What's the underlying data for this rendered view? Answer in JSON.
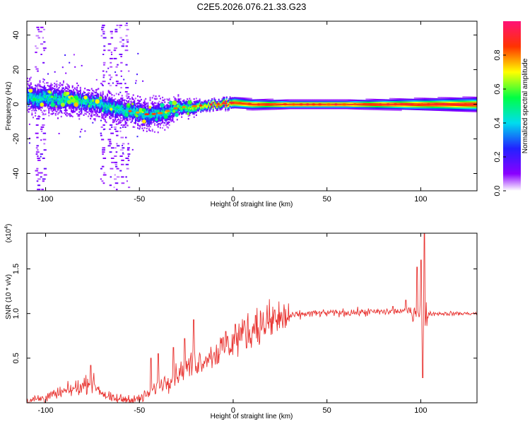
{
  "title": "C2E5.2026.076.21.33.G23",
  "chart_data": [
    {
      "type": "heatmap",
      "xlabel": "Height of straight line (km)",
      "ylabel": "Frequency (Hz)",
      "xlim": [
        -110,
        130
      ],
      "ylim": [
        -50,
        48
      ],
      "xticks": [
        -100,
        -50,
        0,
        50,
        100
      ],
      "yticks": [
        40,
        20,
        0,
        -20,
        -40
      ],
      "colorbar": {
        "label": "Normalized spectral amplitude",
        "range": [
          0.0,
          1.0
        ],
        "ticks": [
          0.0,
          0.2,
          0.4,
          0.6,
          0.8
        ]
      },
      "centerline_points": [
        [
          -108,
          4
        ],
        [
          -95,
          3
        ],
        [
          -85,
          2
        ],
        [
          -75,
          1
        ],
        [
          -65,
          -2
        ],
        [
          -55,
          -4
        ],
        [
          -45,
          -6
        ],
        [
          -38,
          -5
        ],
        [
          -30,
          -2
        ],
        [
          -20,
          -1
        ],
        [
          -10,
          0
        ],
        [
          0,
          1
        ],
        [
          10,
          0
        ],
        [
          30,
          0
        ],
        [
          60,
          0
        ],
        [
          90,
          0
        ],
        [
          100,
          0
        ],
        [
          130,
          0
        ]
      ],
      "band_halfwidth_points": [
        [
          -108,
          8
        ],
        [
          -80,
          7
        ],
        [
          -60,
          7
        ],
        [
          -40,
          8
        ],
        [
          -30,
          5
        ],
        [
          -10,
          3
        ],
        [
          0,
          4
        ],
        [
          30,
          3
        ],
        [
          60,
          3
        ],
        [
          95,
          4
        ],
        [
          130,
          5
        ]
      ],
      "peak_amplitude_points": [
        [
          -108,
          0.45
        ],
        [
          -80,
          0.45
        ],
        [
          -60,
          0.45
        ],
        [
          -40,
          0.4
        ],
        [
          -25,
          0.6
        ],
        [
          -10,
          0.8
        ],
        [
          0,
          0.85
        ],
        [
          30,
          0.9
        ],
        [
          130,
          0.9
        ]
      ],
      "sparse_noise_columns": [
        -105,
        -102,
        -70,
        -66,
        -63,
        -60,
        -57
      ]
    },
    {
      "type": "line",
      "xlabel": "Height of straight line (km)",
      "ylabel": "SNR (10 * v/v)",
      "multiplier_label": "(x10",
      "multiplier_exponent": "4",
      "multiplier_close": ")",
      "xlim": [
        -110,
        130
      ],
      "ylim": [
        0.0,
        1.9
      ],
      "xticks": [
        -100,
        -50,
        0,
        50,
        100
      ],
      "yticks": [
        0.5,
        1.0,
        1.5
      ],
      "ytick_labels": [
        "0.5",
        "1.0",
        "1.5"
      ],
      "color": "#e8322f",
      "trend_points": [
        [
          -110,
          0.02
        ],
        [
          -100,
          0.06
        ],
        [
          -90,
          0.12
        ],
        [
          -80,
          0.19
        ],
        [
          -76,
          0.24
        ],
        [
          -70,
          0.12
        ],
        [
          -65,
          0.04
        ],
        [
          -50,
          0.04
        ],
        [
          -45,
          0.1
        ],
        [
          -40,
          0.2
        ],
        [
          -35,
          0.25
        ],
        [
          -30,
          0.32
        ],
        [
          -25,
          0.4
        ],
        [
          -20,
          0.45
        ],
        [
          -10,
          0.55
        ],
        [
          0,
          0.68
        ],
        [
          10,
          0.82
        ],
        [
          20,
          0.9
        ],
        [
          30,
          0.97
        ],
        [
          40,
          1.0
        ],
        [
          60,
          1.01
        ],
        [
          80,
          1.02
        ],
        [
          95,
          1.03
        ],
        [
          105,
          1.0
        ],
        [
          130,
          1.0
        ]
      ],
      "spikes": [
        [
          -76,
          0.42
        ],
        [
          -44,
          0.5
        ],
        [
          -40,
          0.55
        ],
        [
          -32,
          0.62
        ],
        [
          -26,
          0.72
        ],
        [
          -21,
          0.93
        ],
        [
          -4,
          0.8
        ],
        [
          1,
          0.88
        ],
        [
          6,
          0.92
        ],
        [
          12,
          0.98
        ],
        [
          22,
          1.04
        ],
        [
          85,
          1.08
        ],
        [
          92,
          1.15
        ],
        [
          98,
          1.52
        ],
        [
          100,
          1.6
        ],
        [
          102,
          1.9
        ],
        [
          101,
          0.28
        ]
      ]
    }
  ]
}
